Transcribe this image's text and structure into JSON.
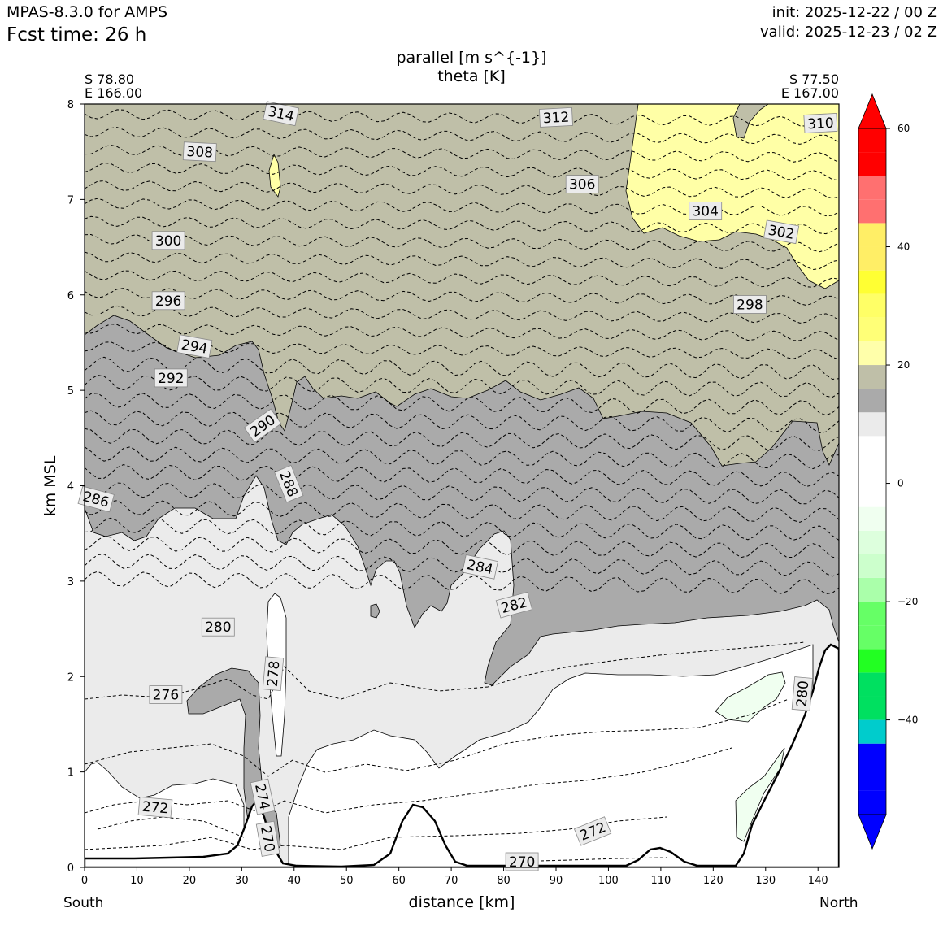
{
  "header": {
    "model": "MPAS-8.3.0 for AMPS",
    "fcst_label": "Fcst time:   26 h",
    "init": "init: 2025-12-22 / 00 Z",
    "valid": "valid: 2025-12-23 / 02 Z"
  },
  "chart_data": {
    "type": "cross-section contour",
    "title_line1": "parallel [m s^{-1}]",
    "title_line2": "theta [K]",
    "xlabel": "distance [km]",
    "ylabel": "km MSL",
    "xlim": [
      0,
      144
    ],
    "ylim": [
      0,
      8
    ],
    "xticks": [
      0,
      10,
      20,
      30,
      40,
      50,
      60,
      70,
      80,
      90,
      100,
      110,
      120,
      130,
      140
    ],
    "yticks": [
      0,
      1,
      2,
      3,
      4,
      5,
      6,
      7,
      8
    ],
    "start_point": {
      "lat": "S 78.80",
      "lon": "E 166.00"
    },
    "end_point": {
      "lat": "S 77.50",
      "lon": "E 167.00"
    },
    "left_label": "South",
    "right_label": "North",
    "colorbar": {
      "ticks": [
        60,
        40,
        20,
        0,
        -20,
        -40
      ],
      "tick_labels": [
        "60",
        "40",
        "20",
        "0",
        "−20",
        "−40"
      ],
      "levels": [
        -56,
        -52,
        -48,
        -44,
        -40,
        -36,
        -32,
        -28,
        -24,
        -20,
        -16,
        -12,
        -8,
        -4,
        0,
        4,
        8,
        12,
        16,
        20,
        24,
        28,
        32,
        36,
        40,
        44,
        48,
        52,
        56,
        60
      ],
      "colors": [
        "#0000ff",
        "#0000ff",
        "#0000ff",
        "#00cccc",
        "#00e060",
        "#00e060",
        "#22ff22",
        "#66ff66",
        "#66ff66",
        "#aaffaa",
        "#ccffcc",
        "#ddffdd",
        "#f0fff0",
        "#ffffff",
        "#ffffff",
        "#ffffff",
        "#ebebeb",
        "#aaaaaa",
        "#bfbfa8",
        "#ffffaa",
        "#ffff77",
        "#ffff66",
        "#ffff33",
        "#ffee66",
        "#ffee66",
        "#ff7070",
        "#ff7070",
        "#ff0000",
        "#ff0000"
      ],
      "extend_colors": {
        "max": "#ff0000",
        "min": "#0000ff"
      }
    },
    "fill_regions": [
      {
        "name": "parallel 20-24",
        "color": "#bfbfa8"
      },
      {
        "name": "parallel 16-20",
        "color": "#aaaaaa"
      },
      {
        "name": "parallel 8-16",
        "color": "#ebebeb"
      },
      {
        "name": "parallel 24-28",
        "color": "#ffffa6"
      },
      {
        "name": "parallel -4-0",
        "color": "#f0fff0"
      }
    ],
    "theta_contour_labels": [
      {
        "text": "314",
        "x": 37.5,
        "y": 7.9,
        "rot": 12
      },
      {
        "text": "312",
        "x": 90,
        "y": 7.86,
        "rot": -3
      },
      {
        "text": "310",
        "x": 140.5,
        "y": 7.8,
        "rot": -3
      },
      {
        "text": "308",
        "x": 22,
        "y": 7.5,
        "rot": 3
      },
      {
        "text": "306",
        "x": 95,
        "y": 7.16,
        "rot": 0
      },
      {
        "text": "304",
        "x": 118.5,
        "y": 6.88,
        "rot": 0
      },
      {
        "text": "302",
        "x": 133,
        "y": 6.66,
        "rot": 10
      },
      {
        "text": "300",
        "x": 16,
        "y": 6.57,
        "rot": 0
      },
      {
        "text": "298",
        "x": 127,
        "y": 5.9,
        "rot": 0
      },
      {
        "text": "296",
        "x": 16,
        "y": 5.94,
        "rot": 0
      },
      {
        "text": "294",
        "x": 21,
        "y": 5.46,
        "rot": 10
      },
      {
        "text": "292",
        "x": 16.5,
        "y": 5.13,
        "rot": 0
      },
      {
        "text": "290",
        "x": 34,
        "y": 4.63,
        "rot": -35
      },
      {
        "text": "288",
        "x": 39,
        "y": 4.02,
        "rot": 68
      },
      {
        "text": "286",
        "x": 2.2,
        "y": 3.86,
        "rot": 15
      },
      {
        "text": "284",
        "x": 75.5,
        "y": 3.15,
        "rot": 12
      },
      {
        "text": "282",
        "x": 82,
        "y": 2.75,
        "rot": -15
      },
      {
        "text": "280",
        "x": 25.5,
        "y": 2.52,
        "rot": 0
      },
      {
        "text": "278",
        "x": 36,
        "y": 2.03,
        "rot": -85
      },
      {
        "text": "276",
        "x": 15.5,
        "y": 1.81,
        "rot": 0
      },
      {
        "text": "274",
        "x": 34,
        "y": 0.74,
        "rot": 78
      },
      {
        "text": "272",
        "x": 13.5,
        "y": 0.63,
        "rot": 5
      },
      {
        "text": "272",
        "x": 97,
        "y": 0.38,
        "rot": -22
      },
      {
        "text": "270",
        "x": 35,
        "y": 0.3,
        "rot": 80
      },
      {
        "text": "270",
        "x": 83.5,
        "y": 0.06,
        "rot": 0
      },
      {
        "text": "280",
        "x": 137,
        "y": 1.82,
        "rot": -85
      }
    ]
  }
}
